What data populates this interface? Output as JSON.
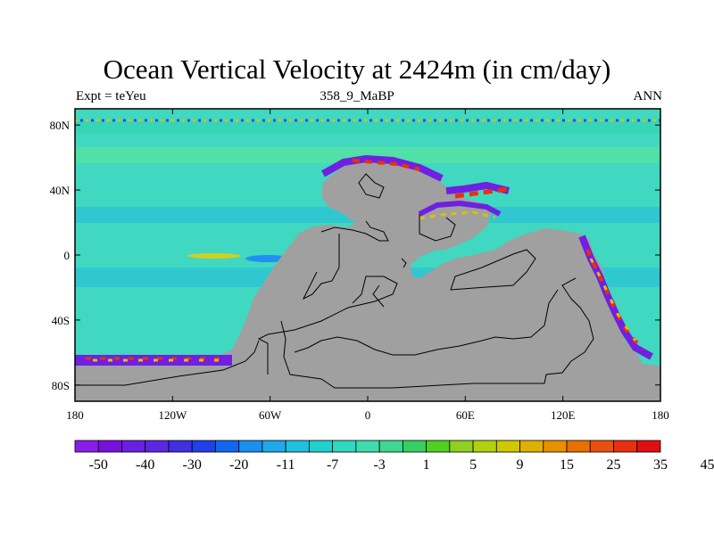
{
  "map": {
    "title": "Ocean Vertical Velocity at 2424m (in cm/day)",
    "subtitle_left": "Expt = teYeu",
    "subtitle_center": "358_9_MaBP",
    "subtitle_right": "ANN",
    "projection": "cylindrical equidistant",
    "lon_range": [
      -180,
      180
    ],
    "lat_range": [
      -90,
      90
    ],
    "land_color": "#a0a0a0",
    "ocean_base_color": "#40d8c0",
    "x_tick_labels": [
      "180",
      "120W",
      "60W",
      "0",
      "60E",
      "120E",
      "180"
    ],
    "y_tick_labels": [
      "80N",
      "40N",
      "0",
      "40S",
      "80S"
    ]
  },
  "colorbar": {
    "labels": [
      "-50",
      "-40",
      "-30",
      "-20",
      "-11",
      "-7",
      "-3",
      "1",
      "5",
      "9",
      "15",
      "25",
      "35",
      "45"
    ],
    "colors": [
      "#8a1ee8",
      "#7a10dc",
      "#6a20e0",
      "#5a28e0",
      "#4030e0",
      "#2040e8",
      "#1068f0",
      "#1890f0",
      "#20a8e8",
      "#20c0e0",
      "#20d0d0",
      "#30d8c0",
      "#40dcb0",
      "#40d890",
      "#38d060",
      "#50d020",
      "#90d020",
      "#b0d010",
      "#d0c800",
      "#e0b000",
      "#e89000",
      "#e87000",
      "#e85010",
      "#e83010",
      "#e01010"
    ]
  }
}
